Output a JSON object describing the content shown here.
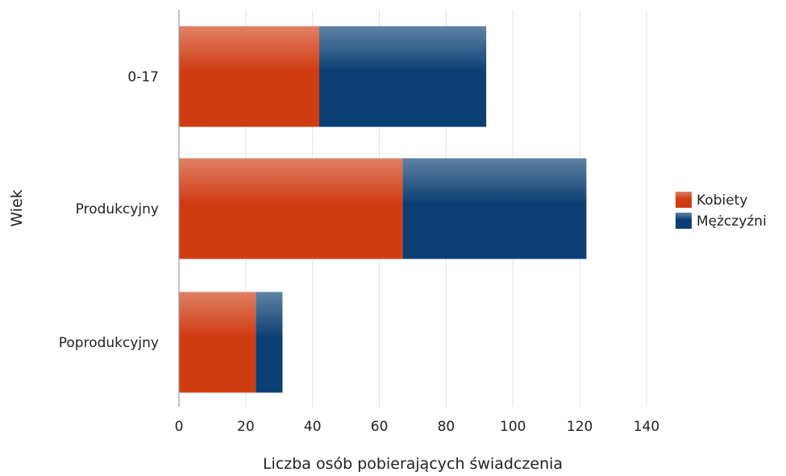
{
  "chart_data": {
    "type": "bar",
    "orientation": "horizontal",
    "stacked": true,
    "categories": [
      "0-17",
      "Produkcyjny",
      "Poprodukcyjny"
    ],
    "series": [
      {
        "name": "Kobiety",
        "values": [
          42,
          67,
          23
        ],
        "color": "#d03c12"
      },
      {
        "name": "Mężczyźni",
        "values": [
          50,
          55,
          8
        ],
        "color": "#0b3f73"
      }
    ],
    "xlabel": "Liczba osób pobierających świadczenia",
    "ylabel": "Wiek",
    "xlim": [
      0,
      140
    ],
    "xticks": [
      0,
      20,
      40,
      60,
      80,
      100,
      120,
      140
    ],
    "grid": "vertical",
    "legend": "right"
  }
}
